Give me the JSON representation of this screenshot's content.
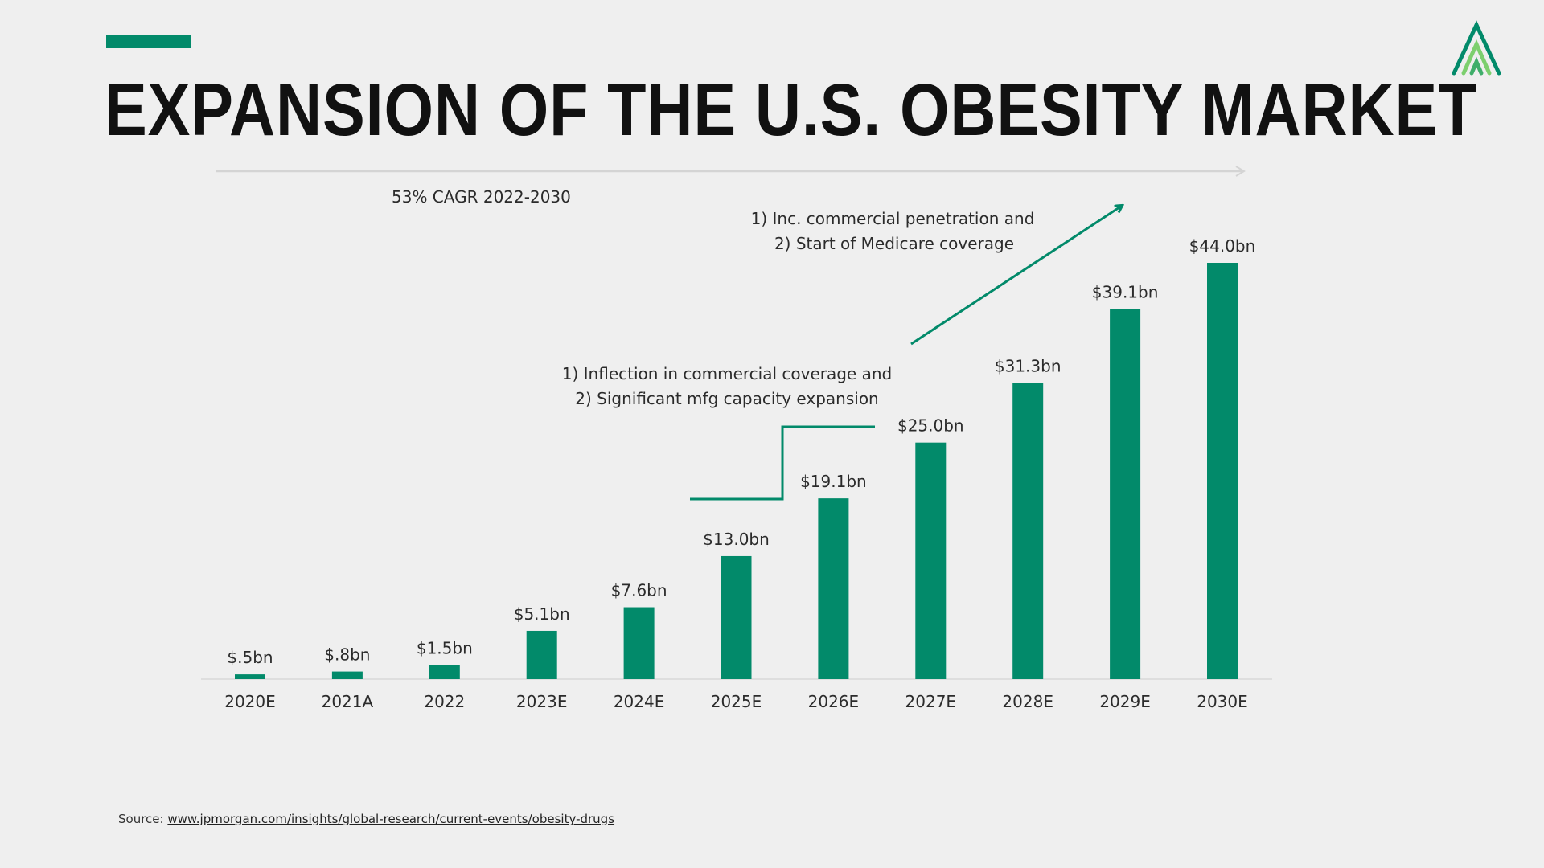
{
  "page": {
    "title": "EXPANSION OF THE U.S. OBESITY MARKET",
    "source_label": "Source:",
    "source_link": "www.jpmorgan.com/insights/global-research/current-events/obesity-drugs"
  },
  "colors": {
    "accent": "#028a6a",
    "bar": "#028a6a",
    "text": "#1f1f1f",
    "background": "#efefef"
  },
  "icons": {
    "logo": "brand-logo-icon"
  },
  "chart_data": {
    "type": "bar",
    "title": "EXPANSION OF THE U.S. OBESITY MARKET",
    "xlabel": "",
    "ylabel": "",
    "ylim": [
      0,
      44.0
    ],
    "grid": false,
    "categories": [
      "2020E",
      "2021A",
      "2022",
      "2023E",
      "2024E",
      "2025E",
      "2026E",
      "2027E",
      "2028E",
      "2029E",
      "2030E"
    ],
    "values": [
      0.5,
      0.8,
      1.5,
      5.1,
      7.6,
      13.0,
      19.1,
      25.0,
      31.3,
      39.1,
      44.0
    ],
    "data_labels": [
      "$.5bn",
      "$.8bn",
      "$1.5bn",
      "$5.1bn",
      "$7.6bn",
      "$13.0bn",
      "$19.1bn",
      "$25.0bn",
      "$31.3bn",
      "$39.1bn",
      "$44.0bn"
    ],
    "annotations": {
      "cagr": "53% CAGR 2022-2030",
      "inflection": [
        "1) Inflection in commercial coverage and",
        "2) Significant mfg capacity expansion"
      ],
      "medicare": [
        "1) Inc. commercial penetration and",
        "2) Start of Medicare coverage"
      ]
    }
  }
}
